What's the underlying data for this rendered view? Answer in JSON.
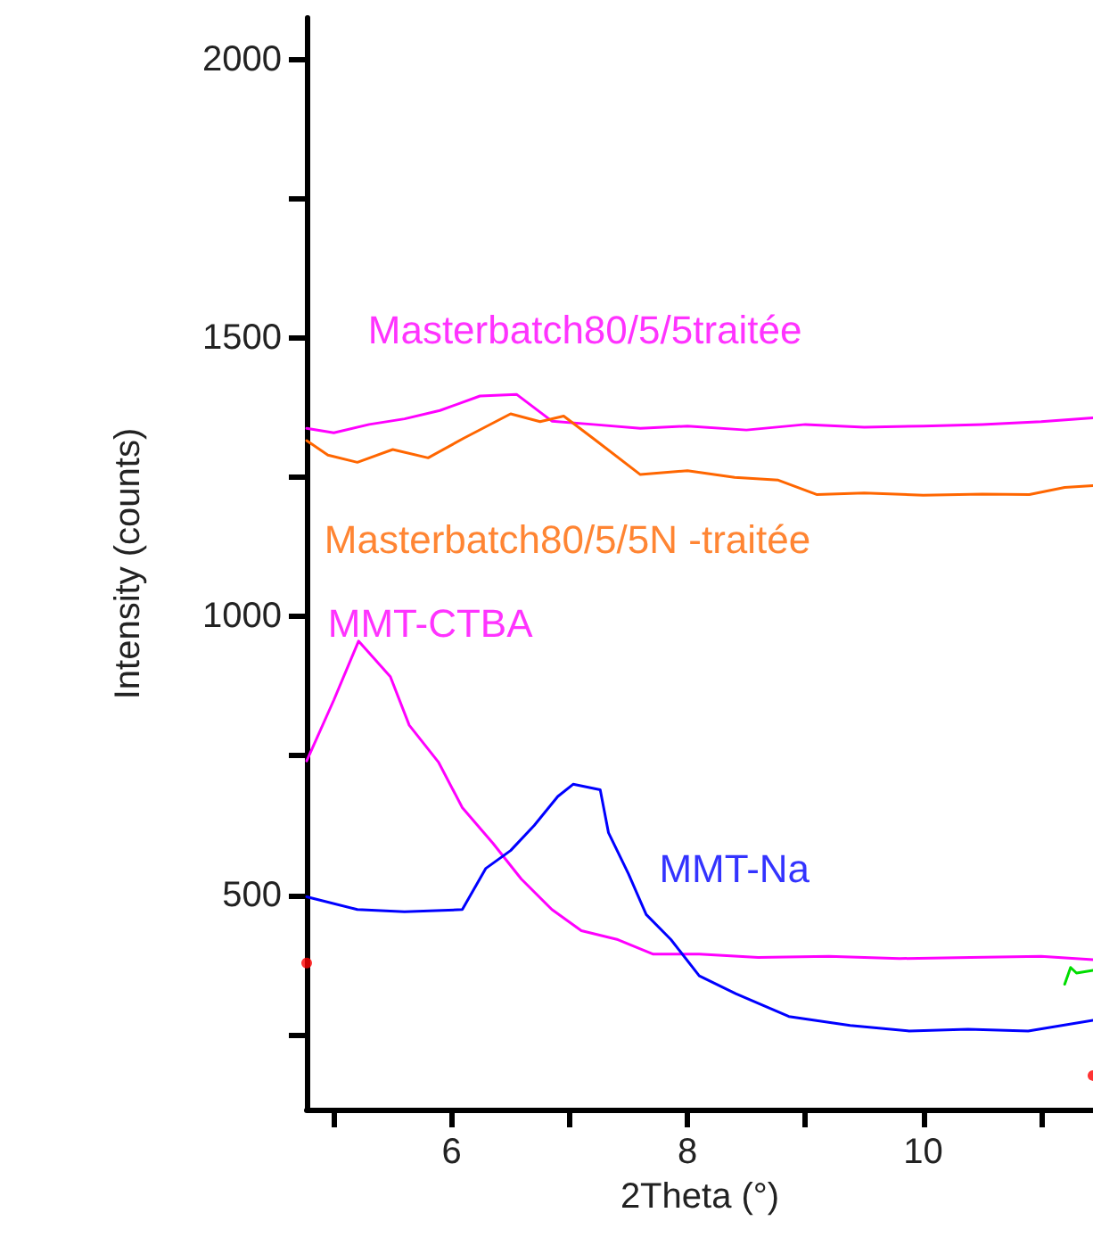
{
  "chart_data": {
    "type": "line",
    "xlabel": "2Theta (°)",
    "ylabel": "Intensity (counts)",
    "xlim": [
      4.77,
      11.44
    ],
    "ylim": [
      115,
      2075
    ],
    "xticks": [
      {
        "value": 5,
        "label": null
      },
      6,
      {
        "value": 7,
        "label": null
      },
      8,
      {
        "value": 9,
        "label": null
      },
      10,
      {
        "value": 11,
        "label": null
      }
    ],
    "yticks": [
      {
        "value": 250,
        "label": null
      },
      500,
      {
        "value": 750,
        "label": null
      },
      1000,
      {
        "value": 1250,
        "label": null
      },
      1500,
      {
        "value": 1750,
        "label": null
      },
      2000
    ],
    "grid": false,
    "legend": false,
    "line_style": "solid",
    "series": [
      {
        "name": "Masterbatch80/5/5traitée",
        "color": "#ff00ff",
        "x": [
          4.77,
          5.0,
          5.3,
          5.6,
          5.9,
          6.24,
          6.55,
          6.85,
          7.2,
          7.6,
          8.0,
          8.5,
          9.0,
          9.5,
          10.0,
          10.5,
          11.0,
          11.44
        ],
        "values": [
          1338,
          1330,
          1345,
          1355,
          1370,
          1396,
          1399,
          1351,
          1345,
          1338,
          1342,
          1335,
          1345,
          1340,
          1342,
          1345,
          1350,
          1357
        ]
      },
      {
        "name": "Masterbatch80/5/5N -traitée",
        "color": "#ff6600",
        "x": [
          4.77,
          4.95,
          5.2,
          5.5,
          5.8,
          6.1,
          6.5,
          6.75,
          6.95,
          7.2,
          7.6,
          8.0,
          8.4,
          8.77,
          9.1,
          9.5,
          10.0,
          10.5,
          10.9,
          11.2,
          11.44
        ],
        "values": [
          1316,
          1290,
          1277,
          1300,
          1285,
          1320,
          1364,
          1350,
          1360,
          1320,
          1255,
          1262,
          1250,
          1245,
          1219,
          1222,
          1218,
          1220,
          1219,
          1232,
          1235
        ]
      },
      {
        "name": "MMT-CTBA",
        "color": "#ff00ff",
        "x": [
          4.77,
          5.0,
          5.21,
          5.48,
          5.64,
          5.89,
          6.09,
          6.35,
          6.59,
          6.85,
          7.1,
          7.41,
          7.71,
          8.1,
          8.6,
          9.2,
          9.8,
          10.4,
          11.0,
          11.44
        ],
        "values": [
          741,
          850,
          956,
          892,
          805,
          738,
          657,
          593,
          529,
          474,
          436,
          420,
          394,
          394,
          388,
          390,
          386,
          388,
          390,
          384
        ]
      },
      {
        "name": "MMT-Na",
        "color": "#0000ff",
        "x": [
          4.77,
          5.2,
          5.6,
          6.09,
          6.29,
          6.5,
          6.7,
          6.9,
          7.03,
          7.26,
          7.33,
          7.5,
          7.65,
          7.86,
          8.1,
          8.41,
          8.86,
          9.38,
          9.88,
          10.38,
          10.89,
          11.44
        ],
        "values": [
          497,
          474,
          470,
          474,
          548,
          580,
          625,
          677,
          699,
          689,
          612,
          538,
          465,
          420,
          355,
          323,
          282,
          266,
          256,
          259,
          256,
          275
        ]
      },
      {
        "color": "#00dd00",
        "x": [
          11.2,
          11.25,
          11.3,
          11.44
        ],
        "values": [
          340,
          370,
          360,
          365
        ]
      },
      {
        "type": "scatter",
        "marker": "circle",
        "color": "#ff0000",
        "x": [
          4.77,
          11.44
        ],
        "values": [
          378,
          176
        ]
      }
    ]
  }
}
